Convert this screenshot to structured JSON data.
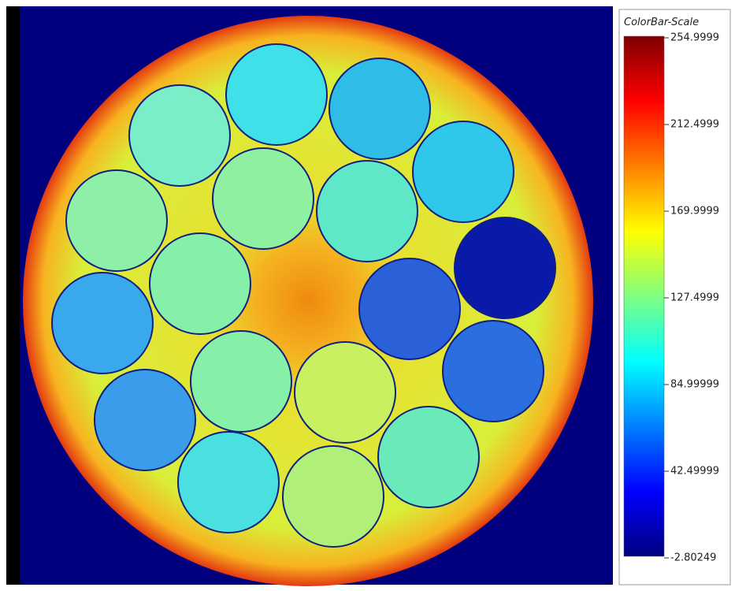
{
  "colorbar": {
    "title": "ColorBar-Scale",
    "ticks": [
      "254.9999",
      "212.4999",
      "169.9999",
      "127.4999",
      "84.99999",
      "42.49999",
      "-2.80249"
    ]
  }
}
